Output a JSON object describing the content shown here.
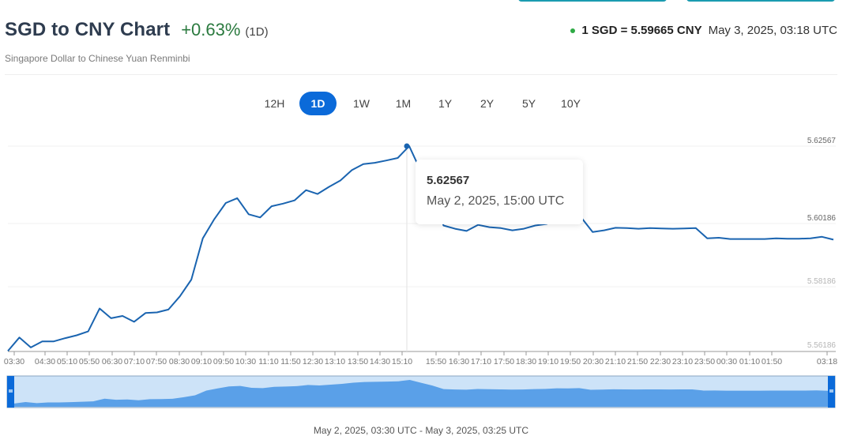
{
  "header": {
    "title": "SGD to CNY Chart",
    "change_pct": "+0.63%",
    "change_period": "(1D)",
    "subtitle": "Singapore Dollar to Chinese Yuan Renminbi",
    "rate": "1 SGD = 5.59665 CNY",
    "rate_time": "May 3, 2025, 03:18 UTC"
  },
  "colors": {
    "accent": "#0b6ad9",
    "line": "#1a64b0",
    "positive": "#2b7a3f",
    "live_dot": "#2eaa45",
    "navigator_fill": "#5aa0e8",
    "navigator_bg": "#cde3f8"
  },
  "tabs": [
    {
      "label": "12H",
      "active": false
    },
    {
      "label": "1D",
      "active": true
    },
    {
      "label": "1W",
      "active": false
    },
    {
      "label": "1M",
      "active": false
    },
    {
      "label": "1Y",
      "active": false
    },
    {
      "label": "2Y",
      "active": false
    },
    {
      "label": "5Y",
      "active": false
    },
    {
      "label": "10Y",
      "active": false
    }
  ],
  "tooltip": {
    "value": "5.62567",
    "date": "May 2, 2025, 15:00 UTC"
  },
  "range_label": "May 2, 2025, 03:30 UTC - May 3, 2025, 03:25 UTC",
  "chart_data": {
    "type": "line",
    "title": "SGD to CNY Chart",
    "xlabel": "",
    "ylabel": "",
    "ylim": [
      5.56186,
      5.62567
    ],
    "y_ticks": [
      "5.62567",
      "5.60186",
      "5.58186",
      "5.56186"
    ],
    "x_ticks": [
      "03:30",
      "04:30",
      "05:10",
      "05:50",
      "06:30",
      "07:10",
      "07:50",
      "08:30",
      "09:10",
      "09:50",
      "10:30",
      "11:10",
      "11:50",
      "12:30",
      "13:10",
      "13:50",
      "14:30",
      "15:10",
      "15:50",
      "16:30",
      "17:10",
      "17:50",
      "18:30",
      "19:10",
      "19:50",
      "20:30",
      "21:10",
      "21:50",
      "22:30",
      "23:10",
      "23:50",
      "00:30",
      "01:10",
      "01:50",
      "03:18"
    ],
    "grid": true,
    "legend": "none",
    "x": [
      "03:30",
      "03:50",
      "04:10",
      "04:30",
      "04:50",
      "05:10",
      "05:30",
      "05:50",
      "06:10",
      "06:30",
      "06:50",
      "07:10",
      "07:30",
      "07:50",
      "08:10",
      "08:30",
      "08:50",
      "09:10",
      "09:30",
      "09:50",
      "10:10",
      "10:30",
      "10:50",
      "11:10",
      "11:30",
      "11:50",
      "12:10",
      "12:30",
      "12:50",
      "13:10",
      "13:30",
      "13:50",
      "14:10",
      "14:30",
      "14:50",
      "15:00",
      "15:20",
      "15:40",
      "16:00",
      "16:20",
      "16:40",
      "17:00",
      "17:20",
      "17:40",
      "18:00",
      "18:20",
      "18:40",
      "19:00",
      "19:20",
      "19:40",
      "20:00",
      "20:20",
      "20:40",
      "21:00",
      "21:20",
      "21:40",
      "22:00",
      "22:20",
      "22:40",
      "23:00",
      "23:20",
      "23:40",
      "00:00",
      "00:20",
      "00:40",
      "01:00",
      "01:20",
      "01:40",
      "02:00",
      "02:20",
      "02:40",
      "03:00",
      "03:18"
    ],
    "values": [
      5.562,
      5.5662,
      5.5631,
      5.565,
      5.565,
      5.566,
      5.5669,
      5.5681,
      5.5752,
      5.5722,
      5.5729,
      5.5711,
      5.5738,
      5.574,
      5.5749,
      5.579,
      5.5842,
      5.597,
      5.603,
      5.608,
      5.6095,
      5.6045,
      5.6035,
      5.607,
      5.6078,
      5.6088,
      5.612,
      5.6108,
      5.613,
      5.615,
      5.6182,
      5.6201,
      5.6205,
      5.6212,
      5.622,
      5.6257,
      5.618,
      5.6105,
      5.601,
      5.6,
      5.5993,
      5.6012,
      5.6005,
      5.6002,
      5.5995,
      5.6,
      5.601,
      5.6015,
      5.6032,
      5.603,
      5.6035,
      5.599,
      5.5995,
      5.6003,
      5.6002,
      5.6,
      5.6002,
      5.6001,
      5.6,
      5.6001,
      5.6002,
      5.597,
      5.5972,
      5.5968,
      5.5968,
      5.5968,
      5.5968,
      5.597,
      5.5969,
      5.5969,
      5.597,
      5.5975,
      5.5966
    ]
  }
}
